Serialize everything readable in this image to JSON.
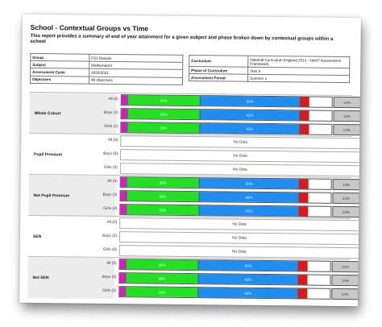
{
  "report": {
    "title": "School - Contextual Groups vs Time",
    "description": "This report provides a summary of end of year attainment for a given subject and phase broken down by contextual groups within a school"
  },
  "info_left": [
    {
      "key": "Group",
      "value": "FS1 Banyan"
    },
    {
      "key": "Subject",
      "value": "Mathematics"
    },
    {
      "key": "Assessment Cycle",
      "value": "2020/2021"
    },
    {
      "key": "Objectives",
      "value": "All objectives"
    }
  ],
  "info_right": [
    {
      "key": "Curriculum",
      "value": "National Curriculum England 2014 - NAHT Assessment Framework"
    },
    {
      "key": "Phase of Curriculum",
      "value": "Year 5"
    },
    {
      "key": "Assessment Period",
      "value": "Summer 1"
    }
  ],
  "no_data_label": "No Data",
  "colors": {
    "magenta": "#e016c8",
    "green": "#24e024",
    "blue": "#1f8ef0",
    "red": "#e01818",
    "grey": "#c8c8c8"
  },
  "groups": [
    {
      "name": "Whole Cohort",
      "rows": [
        {
          "label": "All (5)",
          "has_data": true,
          "green": "36%",
          "blue": "50%",
          "grey": "14%"
        },
        {
          "label": "Boys (3)",
          "has_data": true,
          "green": "36%",
          "blue": "42%",
          "grey": "14%"
        },
        {
          "label": "Girls (2)",
          "has_data": true,
          "green": "39%",
          "blue": "45%",
          "grey": "13%"
        }
      ]
    },
    {
      "name": "Pupil Premium",
      "rows": [
        {
          "label": "All (0)",
          "has_data": false
        },
        {
          "label": "Boys (0)",
          "has_data": false
        },
        {
          "label": "Girls (0)",
          "has_data": false
        }
      ]
    },
    {
      "name": "Not Pupil Premium",
      "rows": [
        {
          "label": "All (5)",
          "has_data": true,
          "green": "36%",
          "blue": "50%",
          "grey": "14%"
        },
        {
          "label": "Boys (3)",
          "has_data": true,
          "green": "36%",
          "blue": "42%",
          "grey": "14%"
        },
        {
          "label": "Girls (2)",
          "has_data": true,
          "green": "39%",
          "blue": "45%",
          "grey": "13%"
        }
      ]
    },
    {
      "name": "SEN",
      "rows": [
        {
          "label": "All (0)",
          "has_data": false
        },
        {
          "label": "Boys (0)",
          "has_data": false
        },
        {
          "label": "Girls (0)",
          "has_data": false
        }
      ]
    },
    {
      "name": "Not SEN",
      "rows": [
        {
          "label": "All (5)",
          "has_data": true,
          "green": "36%",
          "blue": "50%",
          "grey": "14%"
        },
        {
          "label": "Boys (3)",
          "has_data": true,
          "green": "36%",
          "blue": "42%",
          "grey": "14%"
        },
        {
          "label": "Girls (2)",
          "has_data": true,
          "green": "39%",
          "blue": "45%",
          "grey": "13%"
        }
      ]
    }
  ]
}
